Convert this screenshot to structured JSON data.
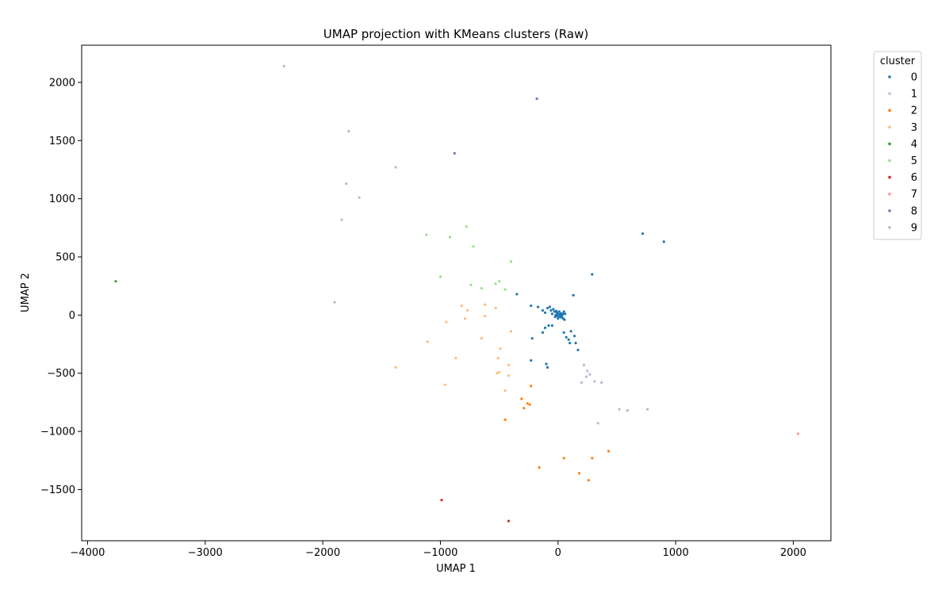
{
  "chart_data": {
    "type": "scatter",
    "title": "UMAP projection with KMeans clusters (Raw)",
    "xlabel": "UMAP 1",
    "ylabel": "UMAP 2",
    "xlim": [
      -4050,
      2320
    ],
    "ylim": [
      -1940,
      2320
    ],
    "xticks": [
      -4000,
      -3000,
      -2000,
      -1000,
      0,
      1000,
      2000
    ],
    "yticks": [
      -1500,
      -1000,
      -500,
      0,
      500,
      1000,
      1500,
      2000
    ],
    "xtick_labels": [
      "−4000",
      "−3000",
      "−2000",
      "−1000",
      "0",
      "1000",
      "2000"
    ],
    "ytick_labels": [
      "−1500",
      "−1000",
      "−500",
      "0",
      "500",
      "1000",
      "1500",
      "2000"
    ],
    "grid": false,
    "legend": {
      "title": "cluster",
      "placement": "outside-top-right"
    },
    "series": [
      {
        "name": "0",
        "color": "#1f77b4",
        "points": [
          [
            -350,
            180
          ],
          [
            -230,
            80
          ],
          [
            -170,
            70
          ],
          [
            -130,
            40
          ],
          [
            -110,
            20
          ],
          [
            -90,
            60
          ],
          [
            -70,
            70
          ],
          [
            -60,
            40
          ],
          [
            -50,
            10
          ],
          [
            -40,
            50
          ],
          [
            -30,
            30
          ],
          [
            -20,
            0
          ],
          [
            -10,
            20
          ],
          [
            0,
            10
          ],
          [
            10,
            30
          ],
          [
            20,
            0
          ],
          [
            30,
            -20
          ],
          [
            40,
            10
          ],
          [
            50,
            30
          ],
          [
            -5,
            -10
          ],
          [
            5,
            5
          ],
          [
            15,
            -15
          ],
          [
            25,
            15
          ],
          [
            -15,
            35
          ],
          [
            35,
            -5
          ],
          [
            45,
            -30
          ],
          [
            55,
            -40
          ],
          [
            -25,
            -15
          ],
          [
            0,
            -30
          ],
          [
            60,
            10
          ],
          [
            -50,
            -90
          ],
          [
            -80,
            -90
          ],
          [
            -110,
            -110
          ],
          [
            -130,
            -150
          ],
          [
            -220,
            -200
          ],
          [
            -230,
            -390
          ],
          [
            -100,
            -420
          ],
          [
            -90,
            -450
          ],
          [
            50,
            -150
          ],
          [
            70,
            -190
          ],
          [
            90,
            -210
          ],
          [
            100,
            -240
          ],
          [
            110,
            -140
          ],
          [
            140,
            -180
          ],
          [
            150,
            -240
          ],
          [
            170,
            -300
          ],
          [
            130,
            170
          ],
          [
            290,
            350
          ],
          [
            720,
            700
          ],
          [
            900,
            630
          ]
        ]
      },
      {
        "name": "1",
        "color": "#aec7e8",
        "points": []
      },
      {
        "name": "2",
        "color": "#ff7f0e",
        "points": [
          [
            -230,
            -610
          ],
          [
            -310,
            -720
          ],
          [
            -290,
            -800
          ],
          [
            -260,
            -760
          ],
          [
            -240,
            -770
          ],
          [
            -450,
            -900
          ],
          [
            -160,
            -1310
          ],
          [
            50,
            -1230
          ],
          [
            180,
            -1360
          ],
          [
            260,
            -1420
          ],
          [
            290,
            -1230
          ],
          [
            430,
            -1170
          ]
        ]
      },
      {
        "name": "3",
        "color": "#ffbb78",
        "points": [
          [
            -820,
            80
          ],
          [
            -770,
            40
          ],
          [
            -620,
            90
          ],
          [
            -530,
            60
          ],
          [
            -950,
            -60
          ],
          [
            -790,
            -30
          ],
          [
            -620,
            -10
          ],
          [
            -650,
            -200
          ],
          [
            -400,
            -140
          ],
          [
            -1110,
            -230
          ],
          [
            -870,
            -370
          ],
          [
            -490,
            -290
          ],
          [
            -510,
            -370
          ],
          [
            -420,
            -430
          ],
          [
            -1380,
            -450
          ],
          [
            -500,
            -490
          ],
          [
            -420,
            -520
          ],
          [
            -520,
            -500
          ],
          [
            -960,
            -600
          ],
          [
            -450,
            -650
          ]
        ]
      },
      {
        "name": "4",
        "color": "#2ca02c",
        "points": [
          [
            -3760,
            290
          ]
        ]
      },
      {
        "name": "5",
        "color": "#98df8a",
        "points": [
          [
            -780,
            760
          ],
          [
            -1120,
            690
          ],
          [
            -920,
            670
          ],
          [
            -720,
            590
          ],
          [
            -400,
            460
          ],
          [
            -1000,
            330
          ],
          [
            -500,
            290
          ],
          [
            -740,
            260
          ],
          [
            -530,
            270
          ],
          [
            -650,
            230
          ],
          [
            -450,
            220
          ]
        ]
      },
      {
        "name": "6",
        "color": "#d62728",
        "points": [
          [
            -990,
            -1590
          ],
          [
            -420,
            -1770
          ]
        ]
      },
      {
        "name": "7",
        "color": "#ff9896",
        "points": [
          [
            2040,
            -1020
          ]
        ]
      },
      {
        "name": "8",
        "color": "#9467bd",
        "points": [
          [
            -180,
            1860
          ],
          [
            -880,
            1390
          ]
        ]
      },
      {
        "name": "9",
        "color": "#c5b0d5",
        "points": [
          [
            -2330,
            2140
          ],
          [
            -1780,
            1580
          ],
          [
            -1800,
            1130
          ],
          [
            -1690,
            1010
          ],
          [
            -1380,
            1270
          ],
          [
            -1840,
            820
          ],
          [
            -1900,
            110
          ],
          [
            220,
            -430
          ],
          [
            250,
            -480
          ],
          [
            270,
            -510
          ],
          [
            240,
            -530
          ],
          [
            200,
            -580
          ],
          [
            310,
            -570
          ],
          [
            370,
            -580
          ],
          [
            520,
            -810
          ],
          [
            590,
            -820
          ],
          [
            760,
            -810
          ],
          [
            340,
            -930
          ]
        ]
      }
    ]
  }
}
